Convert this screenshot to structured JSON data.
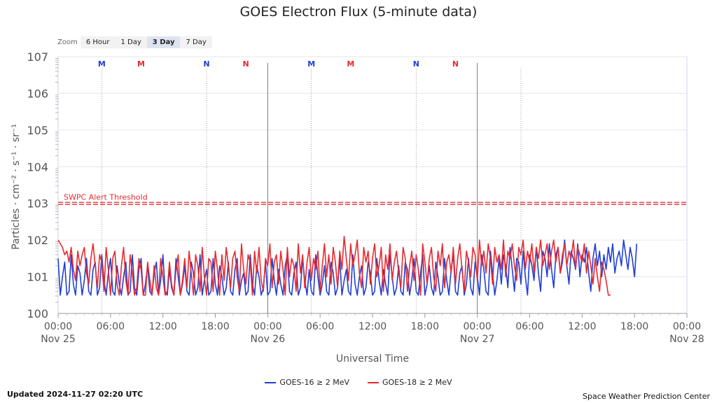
{
  "chart_data": {
    "type": "line",
    "title": "GOES Electron Flux (5-minute data)",
    "xlabel": "Universal Time",
    "ylabel": "Particles · cm⁻² · s⁻¹ · sr⁻¹",
    "y_scale": "log",
    "ylim": [
      1,
      10000000
    ],
    "y_ticks": [
      {
        "base": "10",
        "exp": "7"
      },
      {
        "base": "10",
        "exp": "6"
      },
      {
        "base": "10",
        "exp": "5"
      },
      {
        "base": "10",
        "exp": "4"
      },
      {
        "base": "10",
        "exp": "3"
      },
      {
        "base": "10",
        "exp": "2"
      },
      {
        "base": "10",
        "exp": "1"
      },
      {
        "base": "10",
        "exp": "0"
      }
    ],
    "x_range": [
      "2024-11-25 00:00",
      "2024-11-28 00:00"
    ],
    "x_ticks": [
      {
        "time": "00:00",
        "date": "Nov 25"
      },
      {
        "time": "06:00",
        "date": ""
      },
      {
        "time": "12:00",
        "date": ""
      },
      {
        "time": "18:00",
        "date": ""
      },
      {
        "time": "00:00",
        "date": "Nov 26"
      },
      {
        "time": "06:00",
        "date": ""
      },
      {
        "time": "12:00",
        "date": ""
      },
      {
        "time": "18:00",
        "date": ""
      },
      {
        "time": "00:00",
        "date": "Nov 27"
      },
      {
        "time": "06:00",
        "date": ""
      },
      {
        "time": "12:00",
        "date": ""
      },
      {
        "time": "18:00",
        "date": ""
      },
      {
        "time": "00:00",
        "date": "Nov 28"
      }
    ],
    "threshold": {
      "value": 1000,
      "label": "SWPC Alert Threshold",
      "color": "#e8292f"
    },
    "markers": [
      {
        "letter": "M",
        "hours": 5.0,
        "color": "#1f3fd6"
      },
      {
        "letter": "M",
        "hours": 9.5,
        "color": "#e8292f"
      },
      {
        "letter": "N",
        "hours": 17.0,
        "color": "#1f3fd6"
      },
      {
        "letter": "N",
        "hours": 21.5,
        "color": "#e8292f"
      },
      {
        "letter": "M",
        "hours": 29.0,
        "color": "#1f3fd6"
      },
      {
        "letter": "M",
        "hours": 33.5,
        "color": "#e8292f"
      },
      {
        "letter": "N",
        "hours": 41.0,
        "color": "#1f3fd6"
      },
      {
        "letter": "N",
        "hours": 45.5,
        "color": "#e8292f"
      }
    ],
    "series": [
      {
        "name": "GOES-16 ≥ 2 MeV",
        "color": "#1f3fd6",
        "time_step_hours": 0.25,
        "log10_values": [
          1.5,
          0.5,
          1.0,
          1.4,
          0.5,
          0.6,
          1.6,
          0.8,
          0.5,
          1.3,
          1.1,
          0.5,
          0.9,
          1.5,
          0.6,
          0.5,
          1.2,
          1.4,
          0.5,
          0.7,
          1.6,
          0.9,
          0.5,
          1.1,
          1.5,
          0.6,
          0.5,
          1.3,
          0.8,
          0.5,
          1.0,
          1.4,
          0.5,
          0.6,
          1.6,
          0.7,
          0.5,
          1.2,
          1.5,
          0.5,
          0.8,
          1.3,
          0.6,
          0.5,
          1.1,
          1.4,
          0.5,
          0.9,
          1.6,
          0.6,
          0.5,
          1.2,
          0.7,
          0.5,
          1.5,
          1.0,
          0.5,
          0.8,
          1.3,
          0.6,
          0.5,
          1.4,
          1.1,
          0.5,
          0.7,
          1.6,
          0.5,
          0.9,
          1.2,
          0.5,
          0.6,
          1.5,
          0.8,
          0.5,
          1.3,
          1.0,
          0.5,
          0.7,
          1.4,
          0.6,
          0.5,
          1.2,
          1.5,
          0.5,
          0.9,
          1.1,
          0.5,
          0.6,
          1.6,
          0.8,
          0.5,
          1.3,
          1.0,
          0.5,
          0.7,
          1.4,
          0.5,
          0.6,
          1.5,
          0.9,
          0.5,
          1.2,
          0.8,
          0.5,
          1.3,
          1.6,
          0.6,
          0.5,
          1.1,
          1.4,
          0.5,
          0.7,
          1.5,
          0.9,
          0.5,
          1.2,
          0.6,
          0.5,
          1.6,
          1.0,
          0.5,
          0.8,
          1.3,
          0.6,
          0.5,
          1.4,
          1.1,
          0.5,
          0.7,
          1.5,
          0.5,
          0.9,
          1.2,
          0.6,
          0.5,
          1.6,
          0.8,
          0.5,
          1.0,
          1.3,
          0.5,
          0.7,
          1.4,
          1.1,
          0.5,
          0.6,
          1.5,
          0.9,
          0.5,
          1.2,
          0.8,
          0.5,
          1.6,
          1.0,
          0.5,
          0.7,
          1.3,
          0.6,
          0.5,
          1.4,
          1.2,
          0.5,
          0.9,
          1.5,
          0.6,
          0.5,
          1.1,
          1.6,
          0.5,
          0.8,
          1.3,
          0.7,
          0.5,
          1.4,
          1.0,
          0.5,
          0.6,
          1.5,
          0.9,
          0.5,
          1.2,
          1.6,
          0.6,
          0.5,
          1.1,
          1.3,
          0.5,
          0.8,
          1.5,
          0.7,
          0.5,
          1.4,
          1.0,
          0.5,
          1.6,
          1.2,
          0.6,
          0.5,
          1.7,
          1.1,
          0.5,
          0.9,
          1.5,
          0.8,
          1.6,
          1.3,
          0.7,
          1.8,
          1.2,
          0.6,
          1.5,
          1.4,
          0.8,
          1.7,
          1.0,
          0.5,
          1.6,
          1.3,
          0.9,
          1.8,
          1.1,
          0.6,
          1.7,
          1.5,
          1.0,
          1.9,
          1.2,
          0.7,
          1.6,
          1.8,
          1.1,
          1.4,
          2.0,
          1.3,
          0.8,
          1.7,
          1.5,
          1.2,
          1.9,
          1.0,
          1.6,
          1.4,
          1.8,
          1.1,
          0.6,
          1.5,
          1.9,
          1.3,
          1.7,
          1.0,
          1.6,
          1.2,
          1.8,
          1.4,
          1.9,
          1.1,
          1.5,
          1.7,
          1.3,
          2.0,
          1.6,
          1.2,
          1.8,
          1.5,
          1.0,
          1.9
        ]
      },
      {
        "name": "GOES-18 ≥ 2 MeV",
        "color": "#e8292f",
        "time_step_hours": 0.25,
        "log10_values": [
          2.0,
          1.9,
          1.8,
          1.6,
          1.7,
          1.4,
          1.8,
          1.2,
          0.9,
          1.7,
          1.3,
          1.6,
          1.8,
          1.1,
          0.8,
          1.5,
          1.9,
          1.3,
          0.7,
          1.6,
          1.4,
          0.6,
          1.8,
          1.2,
          0.5,
          1.5,
          1.7,
          0.8,
          0.5,
          1.3,
          1.8,
          0.9,
          0.5,
          1.6,
          1.1,
          0.5,
          0.7,
          1.5,
          1.2,
          0.5,
          0.5,
          1.4,
          0.9,
          0.5,
          1.3,
          0.7,
          0.5,
          1.5,
          1.0,
          0.5,
          0.6,
          1.4,
          0.8,
          0.5,
          1.2,
          1.6,
          0.5,
          0.9,
          1.5,
          0.7,
          1.7,
          1.1,
          0.5,
          1.6,
          1.3,
          0.6,
          1.8,
          1.0,
          0.5,
          1.5,
          1.4,
          0.6,
          1.7,
          1.2,
          0.5,
          1.6,
          0.9,
          1.8,
          1.3,
          0.7,
          1.5,
          1.7,
          1.0,
          0.6,
          1.9,
          1.2,
          0.8,
          1.6,
          1.4,
          0.5,
          1.7,
          1.1,
          1.8,
          0.9,
          0.6,
          1.5,
          1.3,
          1.9,
          0.7,
          1.4,
          1.6,
          0.8,
          1.7,
          1.2,
          0.5,
          1.8,
          1.0,
          1.5,
          1.3,
          0.6,
          1.9,
          1.1,
          1.6,
          0.7,
          1.4,
          1.8,
          0.9,
          1.5,
          1.2,
          1.7,
          0.6,
          1.3,
          1.9,
          1.0,
          1.6,
          0.8,
          1.8,
          1.4,
          0.7,
          1.7,
          1.2,
          2.1,
          1.5,
          0.9,
          1.9,
          1.3,
          1.6,
          2.0,
          1.1,
          0.7,
          1.8,
          1.4,
          1.7,
          0.8,
          1.5,
          1.9,
          1.0,
          1.3,
          1.8,
          0.6,
          1.6,
          1.2,
          1.9,
          0.9,
          1.4,
          1.7,
          1.1,
          0.7,
          1.8,
          1.5,
          0.6,
          1.3,
          1.7,
          0.9,
          1.6,
          1.2,
          0.5,
          1.9,
          1.4,
          0.8,
          1.5,
          1.8,
          1.0,
          0.6,
          1.7,
          1.3,
          1.9,
          0.7,
          1.4,
          1.6,
          1.1,
          1.8,
          0.8,
          1.5,
          1.9,
          1.2,
          0.6,
          1.7,
          1.4,
          1.0,
          1.8,
          1.6,
          0.9,
          2.0,
          1.3,
          1.7,
          1.1,
          1.9,
          1.5,
          0.8,
          1.8,
          1.4,
          1.6,
          1.2,
          2.0,
          1.0,
          1.7,
          1.5,
          1.9,
          1.3,
          0.9,
          1.8,
          1.6,
          2.0,
          1.2,
          1.7,
          1.4,
          1.9,
          1.1,
          1.8,
          1.5,
          2.0,
          1.3,
          1.6,
          1.9,
          1.2,
          1.7,
          2.0,
          1.4,
          1.8,
          1.1,
          1.6,
          1.9,
          1.3,
          1.7,
          1.5,
          2.0,
          1.2,
          1.8,
          1.6,
          1.4,
          1.9,
          1.1,
          1.7,
          1.3,
          0.8,
          1.5,
          1.0,
          0.6,
          1.4,
          1.2,
          0.9,
          0.5,
          0.5
        ]
      }
    ]
  },
  "zoom": {
    "label": "Zoom",
    "buttons": [
      "6 Hour",
      "1 Day",
      "3 Day",
      "7 Day"
    ],
    "active": "3 Day"
  },
  "footer": {
    "updated": "Updated 2024-11-27 02:20 UTC",
    "credit": "Space Weather Prediction Center"
  }
}
